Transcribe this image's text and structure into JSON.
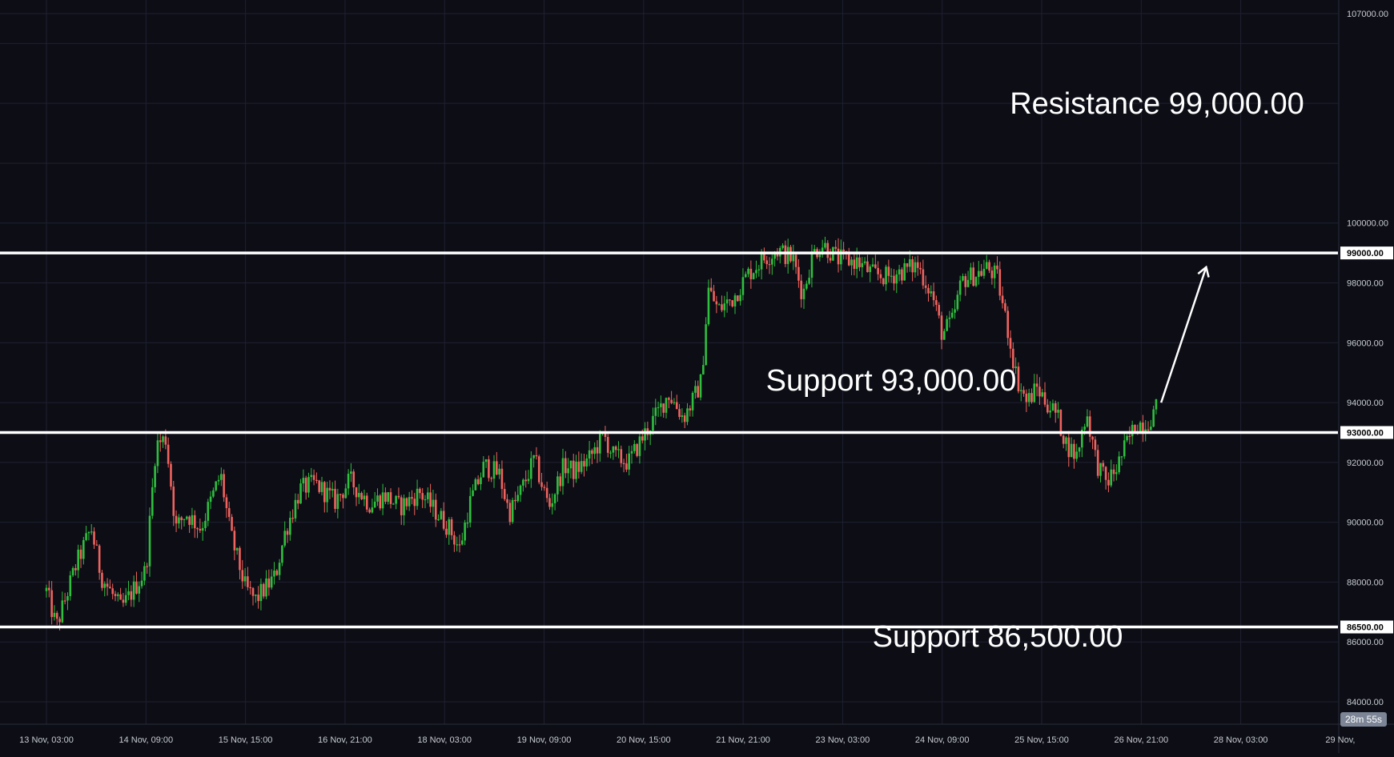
{
  "colors": {
    "background": "#0c0d15",
    "grid": "#1f2130",
    "up": "#2fbf3f",
    "down": "#f0635e",
    "level_line": "#ffffff",
    "axis_text": "#c9ccd3",
    "timer_badge": "#7b8596"
  },
  "chart_data": {
    "type": "candlestick",
    "title": "",
    "xlabel": "",
    "ylabel": "",
    "ylim": [
      83500,
      107500
    ],
    "y_ticks": [
      "84000.00",
      "86000.00",
      "88000.00",
      "90000.00",
      "92000.00",
      "94000.00",
      "96000.00",
      "98000.00",
      "100000.00",
      "107000.00"
    ],
    "x_ticks": [
      "13 Nov, 03:00",
      "14 Nov, 09:00",
      "15 Nov, 15:00",
      "16 Nov, 21:00",
      "18 Nov, 03:00",
      "19 Nov, 09:00",
      "20 Nov, 15:00",
      "21 Nov, 21:00",
      "23 Nov, 03:00",
      "24 Nov, 09:00",
      "25 Nov, 15:00",
      "26 Nov, 21:00",
      "28 Nov, 03:00",
      "29 Nov,"
    ],
    "x_range": [
      "12 Nov ~ 22:20",
      "29 Nov ~ 03:00"
    ],
    "levels": [
      {
        "price": 99000,
        "badge": "99000.00",
        "label": "Resistance 99,000.00"
      },
      {
        "price": 93000,
        "badge": "93000.00",
        "label": "Support 93,000.00"
      },
      {
        "price": 86500,
        "badge": "86500.00",
        "label": "Support 86,500.00"
      }
    ],
    "price_path": [
      [
        0,
        87700
      ],
      [
        0.1,
        86500
      ],
      [
        0.3,
        88600
      ],
      [
        0.45,
        89800
      ],
      [
        0.55,
        88200
      ],
      [
        0.75,
        87100
      ],
      [
        1.0,
        88400
      ],
      [
        1.1,
        92600
      ],
      [
        1.2,
        92800
      ],
      [
        1.3,
        89800
      ],
      [
        1.4,
        90300
      ],
      [
        1.55,
        89800
      ],
      [
        1.75,
        91600
      ],
      [
        1.85,
        89600
      ],
      [
        2.0,
        87800
      ],
      [
        2.1,
        87400
      ],
      [
        2.3,
        88200
      ],
      [
        2.4,
        89700
      ],
      [
        2.55,
        91100
      ],
      [
        2.7,
        91300
      ],
      [
        2.9,
        90700
      ],
      [
        3.05,
        91400
      ],
      [
        3.25,
        90600
      ],
      [
        3.4,
        90900
      ],
      [
        3.55,
        90500
      ],
      [
        3.75,
        91000
      ],
      [
        3.9,
        90400
      ],
      [
        4.05,
        89800
      ],
      [
        4.15,
        89100
      ],
      [
        4.25,
        90600
      ],
      [
        4.4,
        91900
      ],
      [
        4.55,
        91600
      ],
      [
        4.65,
        90300
      ],
      [
        4.75,
        90900
      ],
      [
        4.9,
        92100
      ],
      [
        5.05,
        90500
      ],
      [
        5.2,
        91900
      ],
      [
        5.3,
        91700
      ],
      [
        5.45,
        92100
      ],
      [
        5.6,
        92900
      ],
      [
        5.7,
        92200
      ],
      [
        5.85,
        92000
      ],
      [
        6.0,
        92900
      ],
      [
        6.15,
        93700
      ],
      [
        6.25,
        94300
      ],
      [
        6.4,
        93500
      ],
      [
        6.5,
        94100
      ],
      [
        6.58,
        94700
      ],
      [
        6.65,
        97800
      ],
      [
        6.75,
        97100
      ],
      [
        6.9,
        97500
      ],
      [
        7.05,
        98300
      ],
      [
        7.2,
        98800
      ],
      [
        7.35,
        99100
      ],
      [
        7.5,
        98800
      ],
      [
        7.6,
        97600
      ],
      [
        7.7,
        99000
      ],
      [
        7.8,
        99300
      ],
      [
        7.95,
        98800
      ],
      [
        8.15,
        98700
      ],
      [
        8.3,
        98300
      ],
      [
        8.45,
        98200
      ],
      [
        8.6,
        98400
      ],
      [
        8.75,
        98600
      ],
      [
        8.9,
        97600
      ],
      [
        9.0,
        96300
      ],
      [
        9.1,
        96700
      ],
      [
        9.2,
        98100
      ],
      [
        9.35,
        98300
      ],
      [
        9.45,
        98500
      ],
      [
        9.55,
        98200
      ],
      [
        9.65,
        96600
      ],
      [
        9.75,
        94800
      ],
      [
        9.85,
        94000
      ],
      [
        9.95,
        94500
      ],
      [
        10.05,
        94000
      ],
      [
        10.15,
        93600
      ],
      [
        10.25,
        92600
      ],
      [
        10.35,
        92200
      ],
      [
        10.45,
        93700
      ],
      [
        10.55,
        92000
      ],
      [
        10.65,
        91300
      ],
      [
        10.75,
        91800
      ],
      [
        10.85,
        92600
      ],
      [
        10.95,
        93300
      ],
      [
        11.05,
        93300
      ],
      [
        11.15,
        93800
      ]
    ],
    "candle_count": 420,
    "forecast_arrow": {
      "from": [
        11.2,
        94000
      ],
      "to": [
        11.65,
        98500
      ]
    }
  },
  "price_axis": {
    "timer": "28m 55s"
  }
}
